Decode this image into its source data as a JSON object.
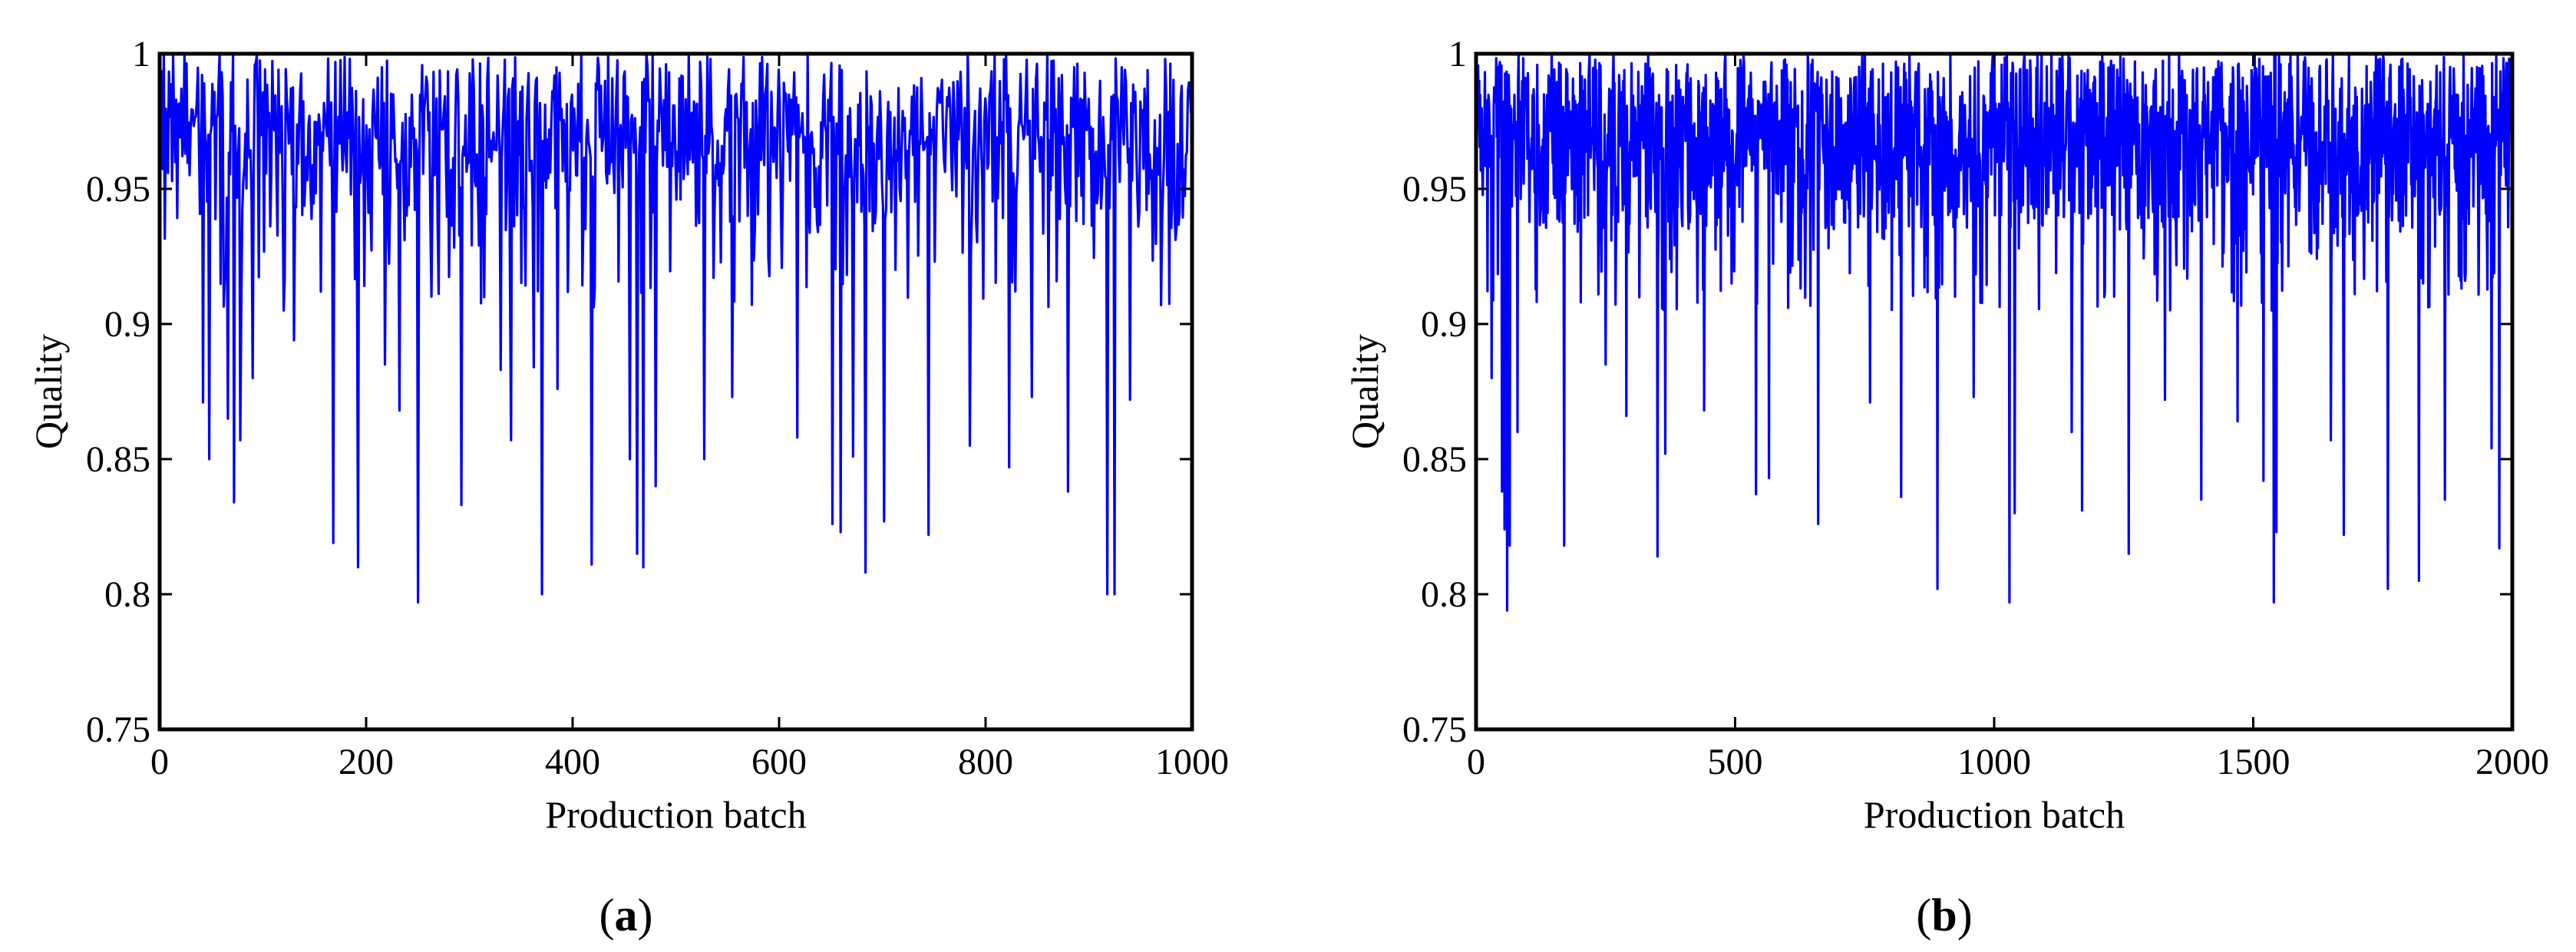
{
  "chart_data": [
    {
      "type": "line",
      "panel_label": "a",
      "xlabel": "Production batch",
      "ylabel": "Quality",
      "xlim": [
        0,
        1000
      ],
      "ylim": [
        0.75,
        1.0
      ],
      "xticks": [
        0,
        200,
        400,
        600,
        800,
        1000
      ],
      "xtick_labels": [
        "0",
        "200",
        "400",
        "600",
        "800",
        "1000"
      ],
      "yticks": [
        0.75,
        0.8,
        0.85,
        0.9,
        0.95,
        1.0
      ],
      "ytick_labels": [
        "0.75",
        "0.8",
        "0.85",
        "0.9",
        "0.95",
        "1"
      ],
      "grid": false,
      "line_color": "#0000ff",
      "series": [
        {
          "n_points": 1000,
          "typical_range": [
            0.93,
            1.0
          ],
          "dips": [
            {
              "x": 42,
              "y": 0.871
            },
            {
              "x": 48,
              "y": 0.85
            },
            {
              "x": 66,
              "y": 0.865
            },
            {
              "x": 72,
              "y": 0.834
            },
            {
              "x": 78,
              "y": 0.857
            },
            {
              "x": 90,
              "y": 0.88
            },
            {
              "x": 130,
              "y": 0.894
            },
            {
              "x": 168,
              "y": 0.819
            },
            {
              "x": 192,
              "y": 0.81
            },
            {
              "x": 218,
              "y": 0.885
            },
            {
              "x": 232,
              "y": 0.868
            },
            {
              "x": 250,
              "y": 0.797
            },
            {
              "x": 292,
              "y": 0.833
            },
            {
              "x": 330,
              "y": 0.883
            },
            {
              "x": 340,
              "y": 0.857
            },
            {
              "x": 362,
              "y": 0.884
            },
            {
              "x": 370,
              "y": 0.8
            },
            {
              "x": 385,
              "y": 0.876
            },
            {
              "x": 418,
              "y": 0.811
            },
            {
              "x": 455,
              "y": 0.85
            },
            {
              "x": 462,
              "y": 0.815
            },
            {
              "x": 468,
              "y": 0.81
            },
            {
              "x": 480,
              "y": 0.84
            },
            {
              "x": 528,
              "y": 0.85
            },
            {
              "x": 555,
              "y": 0.873
            },
            {
              "x": 618,
              "y": 0.858
            },
            {
              "x": 652,
              "y": 0.826
            },
            {
              "x": 660,
              "y": 0.823
            },
            {
              "x": 672,
              "y": 0.851
            },
            {
              "x": 684,
              "y": 0.808
            },
            {
              "x": 702,
              "y": 0.827
            },
            {
              "x": 745,
              "y": 0.822
            },
            {
              "x": 785,
              "y": 0.855
            },
            {
              "x": 823,
              "y": 0.847
            },
            {
              "x": 845,
              "y": 0.873
            },
            {
              "x": 880,
              "y": 0.838
            },
            {
              "x": 918,
              "y": 0.8
            },
            {
              "x": 925,
              "y": 0.8
            },
            {
              "x": 940,
              "y": 0.872
            },
            {
              "x": 970,
              "y": 0.907
            }
          ]
        }
      ]
    },
    {
      "type": "line",
      "panel_label": "b",
      "xlabel": "Production batch",
      "ylabel": "Quality",
      "xlim": [
        0,
        2000
      ],
      "ylim": [
        0.75,
        1.0
      ],
      "xticks": [
        0,
        500,
        1000,
        1500,
        2000
      ],
      "xtick_labels": [
        "0",
        "500",
        "1000",
        "1500",
        "2000"
      ],
      "yticks": [
        0.75,
        0.8,
        0.85,
        0.9,
        0.95,
        1.0
      ],
      "ytick_labels": [
        "0.75",
        "0.8",
        "0.85",
        "0.9",
        "0.95",
        "1"
      ],
      "grid": false,
      "line_color": "#0000ff",
      "series": [
        {
          "n_points": 2000,
          "typical_range": [
            0.93,
            1.0
          ],
          "dips": [
            {
              "x": 30,
              "y": 0.88
            },
            {
              "x": 50,
              "y": 0.838
            },
            {
              "x": 55,
              "y": 0.824
            },
            {
              "x": 60,
              "y": 0.794
            },
            {
              "x": 65,
              "y": 0.818
            },
            {
              "x": 80,
              "y": 0.86
            },
            {
              "x": 170,
              "y": 0.818
            },
            {
              "x": 250,
              "y": 0.885
            },
            {
              "x": 290,
              "y": 0.866
            },
            {
              "x": 350,
              "y": 0.814
            },
            {
              "x": 365,
              "y": 0.852
            },
            {
              "x": 440,
              "y": 0.868
            },
            {
              "x": 540,
              "y": 0.837
            },
            {
              "x": 565,
              "y": 0.843
            },
            {
              "x": 660,
              "y": 0.826
            },
            {
              "x": 760,
              "y": 0.871
            },
            {
              "x": 820,
              "y": 0.836
            },
            {
              "x": 890,
              "y": 0.802
            },
            {
              "x": 960,
              "y": 0.873
            },
            {
              "x": 1030,
              "y": 0.797
            },
            {
              "x": 1040,
              "y": 0.83
            },
            {
              "x": 1150,
              "y": 0.86
            },
            {
              "x": 1170,
              "y": 0.831
            },
            {
              "x": 1260,
              "y": 0.815
            },
            {
              "x": 1330,
              "y": 0.872
            },
            {
              "x": 1400,
              "y": 0.835
            },
            {
              "x": 1470,
              "y": 0.864
            },
            {
              "x": 1520,
              "y": 0.842
            },
            {
              "x": 1540,
              "y": 0.797
            },
            {
              "x": 1545,
              "y": 0.823
            },
            {
              "x": 1650,
              "y": 0.857
            },
            {
              "x": 1675,
              "y": 0.822
            },
            {
              "x": 1760,
              "y": 0.802
            },
            {
              "x": 1820,
              "y": 0.805
            },
            {
              "x": 1870,
              "y": 0.835
            },
            {
              "x": 1960,
              "y": 0.854
            },
            {
              "x": 1975,
              "y": 0.817
            }
          ]
        }
      ]
    }
  ]
}
